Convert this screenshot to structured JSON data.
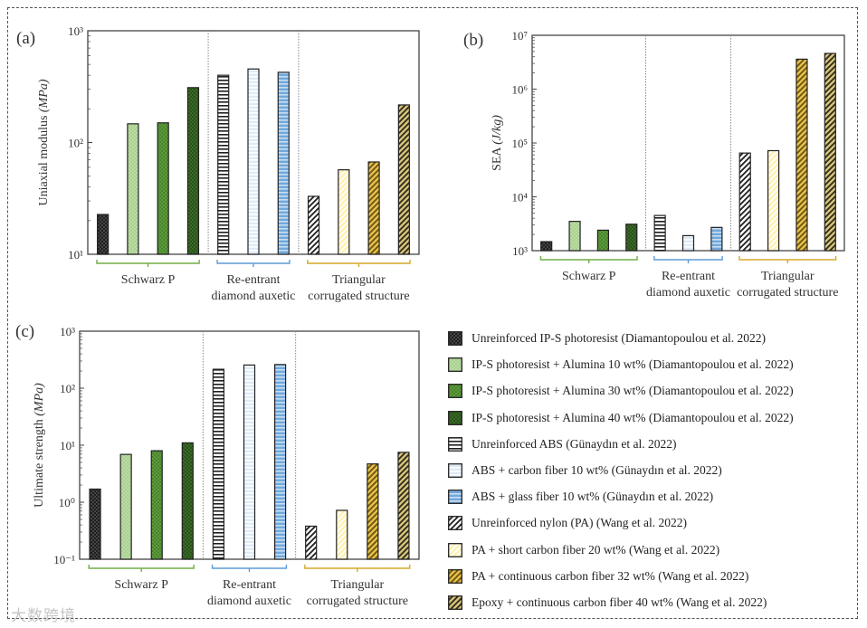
{
  "watermark": "大数跨境",
  "materials": [
    {
      "label": "Unreinforced IP-S photoresist (Diamantopoulou et al. 2022)",
      "color": "#1e1e1e",
      "pattern": "cross",
      "line": "#555555"
    },
    {
      "label": "IP-S photoresist + Alumina 10 wt% (Diamantopoulou et al. 2022)",
      "color": "#a9d18e",
      "pattern": "cross",
      "line": "#c5e0b3"
    },
    {
      "label": "IP-S photoresist + Alumina 30 wt% (Diamantopoulou et al. 2022)",
      "color": "#5e9c3c",
      "pattern": "cross",
      "line": "#3f7a25"
    },
    {
      "label": "IP-S photoresist + Alumina 40 wt% (Diamantopoulou et al. 2022)",
      "color": "#3a6b24",
      "pattern": "cross",
      "line": "#24481a"
    },
    {
      "label": "Unreinforced ABS (Günaydın et al. 2022)",
      "color": "#ffffff",
      "pattern": "hlines",
      "line": "#1e1e1e"
    },
    {
      "label": "ABS + carbon fiber 10 wt% (Günaydın et al. 2022)",
      "color": "#deebf7",
      "pattern": "hlines",
      "line": "#ffffff"
    },
    {
      "label": "ABS + glass fiber 10 wt% (Günaydın et al. 2022)",
      "color": "#6fa8dc",
      "pattern": "hlines",
      "line": "#c9def2"
    },
    {
      "label": "Unreinforced nylon (PA) (Wang et al. 2022)",
      "color": "#ffffff",
      "pattern": "diag",
      "line": "#1e1e1e"
    },
    {
      "label": "PA + short carbon fiber 20 wt% (Wang et al. 2022)",
      "color": "#fff2b3",
      "pattern": "diag",
      "line": "#ffffff"
    },
    {
      "label": "PA + continuous carbon fiber 32 wt% (Wang et al. 2022)",
      "color": "#e6c04a",
      "pattern": "diag",
      "line": "#6b5410"
    },
    {
      "label": "Epoxy + continuous carbon fiber 40 wt% (Wang et al. 2022)",
      "color": "#d8c27a",
      "pattern": "diag",
      "line": "#2a2a1a"
    }
  ],
  "groups": [
    {
      "label_lines": [
        "Schwarz P"
      ],
      "color": "#70ad47",
      "count": 4
    },
    {
      "label_lines": [
        "Re-entrant",
        "diamond auxetic"
      ],
      "color": "#5b9bd5",
      "count": 3
    },
    {
      "label_lines": [
        "Triangular",
        "corrugated structure"
      ],
      "color": "#d6a92a",
      "count": 4
    }
  ],
  "chart_data": [
    {
      "panel": "(a)",
      "type": "bar",
      "yscale": "log",
      "ylabel": "Uniaxial modulus ",
      "ylabel_unit": "(MPa)",
      "ylim_exp": [
        1,
        3
      ],
      "ytick_labels": [
        "10¹",
        "10²",
        "10³"
      ],
      "values": [
        22.7,
        147,
        150,
        310,
        400,
        455,
        425,
        33,
        57,
        67,
        217
      ]
    },
    {
      "panel": "(b)",
      "type": "bar",
      "yscale": "log",
      "ylabel": "SEA ",
      "ylabel_unit": "(J/kg)",
      "ylim_exp": [
        3,
        7
      ],
      "ytick_labels": [
        "10³",
        "10⁴",
        "10⁵",
        "10⁶",
        "10⁷"
      ],
      "values": [
        1470,
        3500,
        2400,
        3100,
        4500,
        1900,
        2700,
        65000,
        72000,
        3600000,
        4600000
      ]
    },
    {
      "panel": "(c)",
      "type": "bar",
      "yscale": "log",
      "ylabel": "Ultimate strength ",
      "ylabel_unit": "(MPa)",
      "ylim_exp": [
        -1,
        3
      ],
      "ytick_labels": [
        "10⁻¹",
        "10⁰",
        "10¹",
        "10²",
        "10³"
      ],
      "values": [
        1.7,
        6.9,
        8.0,
        11,
        215,
        255,
        260,
        0.38,
        0.72,
        4.7,
        7.5
      ]
    }
  ]
}
